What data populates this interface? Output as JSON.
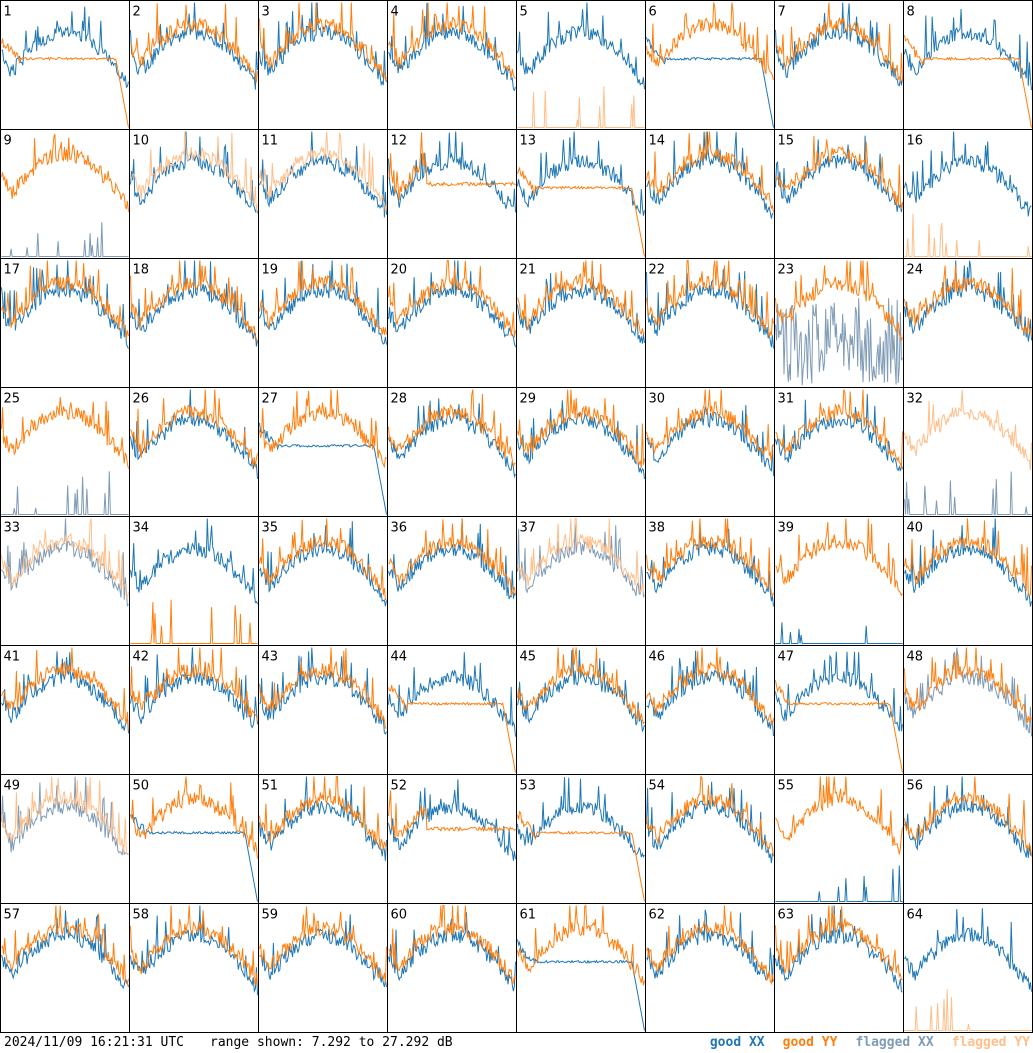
{
  "footer": {
    "timestamp": "2024/11/09 16:21:31 UTC",
    "range_text": "range shown: 7.292 to 27.292 dB"
  },
  "legend": {
    "good_xx": "good XX",
    "good_yy": "good YY",
    "flagged_xx": "flagged XX",
    "flagged_yy": "flagged YY"
  },
  "colors": {
    "good_xx": "#1f77b4",
    "good_yy": "#ff7f0e",
    "flagged_xx": "#7f9bb6",
    "flagged_yy": "#ffbf8a"
  },
  "chart_data": {
    "type": "line",
    "grid_rows": 8,
    "grid_cols": 8,
    "ylim_db": [
      7.292,
      27.292
    ],
    "tiles": [
      {
        "n": "1",
        "xx": "good",
        "yy": "good",
        "shape": "rolloff_yy"
      },
      {
        "n": "2",
        "xx": "good",
        "yy": "good",
        "shape": "normal"
      },
      {
        "n": "3",
        "xx": "good",
        "yy": "good",
        "shape": "normal"
      },
      {
        "n": "4",
        "xx": "good",
        "yy": "good",
        "shape": "normal"
      },
      {
        "n": "5",
        "xx": "good",
        "yy": "flagged",
        "shape": "yy_spikes_low"
      },
      {
        "n": "6",
        "xx": "good",
        "yy": "good",
        "shape": "rolloff_xx"
      },
      {
        "n": "7",
        "xx": "good",
        "yy": "good",
        "shape": "normal"
      },
      {
        "n": "8",
        "xx": "good",
        "yy": "good",
        "shape": "rolloff_yy"
      },
      {
        "n": "9",
        "xx": "flagged",
        "yy": "good",
        "shape": "xx_spikes_low"
      },
      {
        "n": "10",
        "xx": "good",
        "yy": "flagged",
        "shape": "normal"
      },
      {
        "n": "11",
        "xx": "good",
        "yy": "flagged",
        "shape": "normal"
      },
      {
        "n": "12",
        "xx": "good",
        "yy": "good",
        "shape": "flat_yy"
      },
      {
        "n": "13",
        "xx": "good",
        "yy": "good",
        "shape": "rolloff_yy"
      },
      {
        "n": "14",
        "xx": "good",
        "yy": "good",
        "shape": "normal"
      },
      {
        "n": "15",
        "xx": "good",
        "yy": "good",
        "shape": "normal"
      },
      {
        "n": "16",
        "xx": "good",
        "yy": "flagged",
        "shape": "yy_spikes_low"
      },
      {
        "n": "17",
        "xx": "good",
        "yy": "good",
        "shape": "normal"
      },
      {
        "n": "18",
        "xx": "good",
        "yy": "good",
        "shape": "normal"
      },
      {
        "n": "19",
        "xx": "good",
        "yy": "good",
        "shape": "normal"
      },
      {
        "n": "20",
        "xx": "good",
        "yy": "good",
        "shape": "normal"
      },
      {
        "n": "21",
        "xx": "good",
        "yy": "good",
        "shape": "normal"
      },
      {
        "n": "22",
        "xx": "good",
        "yy": "good",
        "shape": "normal"
      },
      {
        "n": "23",
        "xx": "flagged",
        "yy": "good",
        "shape": "xx_noisy"
      },
      {
        "n": "24",
        "xx": "good",
        "yy": "good",
        "shape": "normal"
      },
      {
        "n": "25",
        "xx": "flagged",
        "yy": "good",
        "shape": "xx_spikes_low"
      },
      {
        "n": "26",
        "xx": "good",
        "yy": "good",
        "shape": "normal"
      },
      {
        "n": "27",
        "xx": "good",
        "yy": "good",
        "shape": "rolloff_xx"
      },
      {
        "n": "28",
        "xx": "good",
        "yy": "good",
        "shape": "normal"
      },
      {
        "n": "29",
        "xx": "good",
        "yy": "good",
        "shape": "normal"
      },
      {
        "n": "30",
        "xx": "good",
        "yy": "good",
        "shape": "normal"
      },
      {
        "n": "31",
        "xx": "good",
        "yy": "good",
        "shape": "normal"
      },
      {
        "n": "32",
        "xx": "flagged",
        "yy": "flagged",
        "shape": "xx_spikes_low"
      },
      {
        "n": "33",
        "xx": "flagged",
        "yy": "flagged",
        "shape": "normal"
      },
      {
        "n": "34",
        "xx": "good",
        "yy": "good",
        "shape": "yy_spikes_low"
      },
      {
        "n": "35",
        "xx": "good",
        "yy": "good",
        "shape": "normal"
      },
      {
        "n": "36",
        "xx": "good",
        "yy": "good",
        "shape": "normal"
      },
      {
        "n": "37",
        "xx": "flagged",
        "yy": "flagged",
        "shape": "normal"
      },
      {
        "n": "38",
        "xx": "good",
        "yy": "good",
        "shape": "normal"
      },
      {
        "n": "39",
        "xx": "good",
        "yy": "good",
        "shape": "xx_spikes_low"
      },
      {
        "n": "40",
        "xx": "good",
        "yy": "good",
        "shape": "normal"
      },
      {
        "n": "41",
        "xx": "good",
        "yy": "good",
        "shape": "normal"
      },
      {
        "n": "42",
        "xx": "good",
        "yy": "good",
        "shape": "normal"
      },
      {
        "n": "43",
        "xx": "good",
        "yy": "good",
        "shape": "normal"
      },
      {
        "n": "44",
        "xx": "good",
        "yy": "good",
        "shape": "rolloff_yy"
      },
      {
        "n": "45",
        "xx": "good",
        "yy": "good",
        "shape": "normal"
      },
      {
        "n": "46",
        "xx": "good",
        "yy": "good",
        "shape": "normal"
      },
      {
        "n": "47",
        "xx": "good",
        "yy": "good",
        "shape": "rolloff_yy"
      },
      {
        "n": "48",
        "xx": "flagged",
        "yy": "good",
        "shape": "normal"
      },
      {
        "n": "49",
        "xx": "flagged",
        "yy": "flagged",
        "shape": "normal"
      },
      {
        "n": "50",
        "xx": "good",
        "yy": "good",
        "shape": "rolloff_xx"
      },
      {
        "n": "51",
        "xx": "good",
        "yy": "good",
        "shape": "normal"
      },
      {
        "n": "52",
        "xx": "good",
        "yy": "good",
        "shape": "flat_yy"
      },
      {
        "n": "53",
        "xx": "good",
        "yy": "good",
        "shape": "rolloff_yy"
      },
      {
        "n": "54",
        "xx": "good",
        "yy": "good",
        "shape": "normal"
      },
      {
        "n": "55",
        "xx": "good",
        "yy": "good",
        "shape": "xx_spikes_low"
      },
      {
        "n": "56",
        "xx": "good",
        "yy": "good",
        "shape": "normal"
      },
      {
        "n": "57",
        "xx": "good",
        "yy": "good",
        "shape": "normal"
      },
      {
        "n": "58",
        "xx": "good",
        "yy": "good",
        "shape": "normal"
      },
      {
        "n": "59",
        "xx": "good",
        "yy": "good",
        "shape": "normal"
      },
      {
        "n": "60",
        "xx": "good",
        "yy": "good",
        "shape": "normal"
      },
      {
        "n": "61",
        "xx": "good",
        "yy": "good",
        "shape": "rolloff_xx"
      },
      {
        "n": "62",
        "xx": "good",
        "yy": "good",
        "shape": "normal"
      },
      {
        "n": "63",
        "xx": "good",
        "yy": "good",
        "shape": "normal"
      },
      {
        "n": "64",
        "xx": "good",
        "yy": "flagged",
        "shape": "yy_spikes_low"
      }
    ]
  }
}
